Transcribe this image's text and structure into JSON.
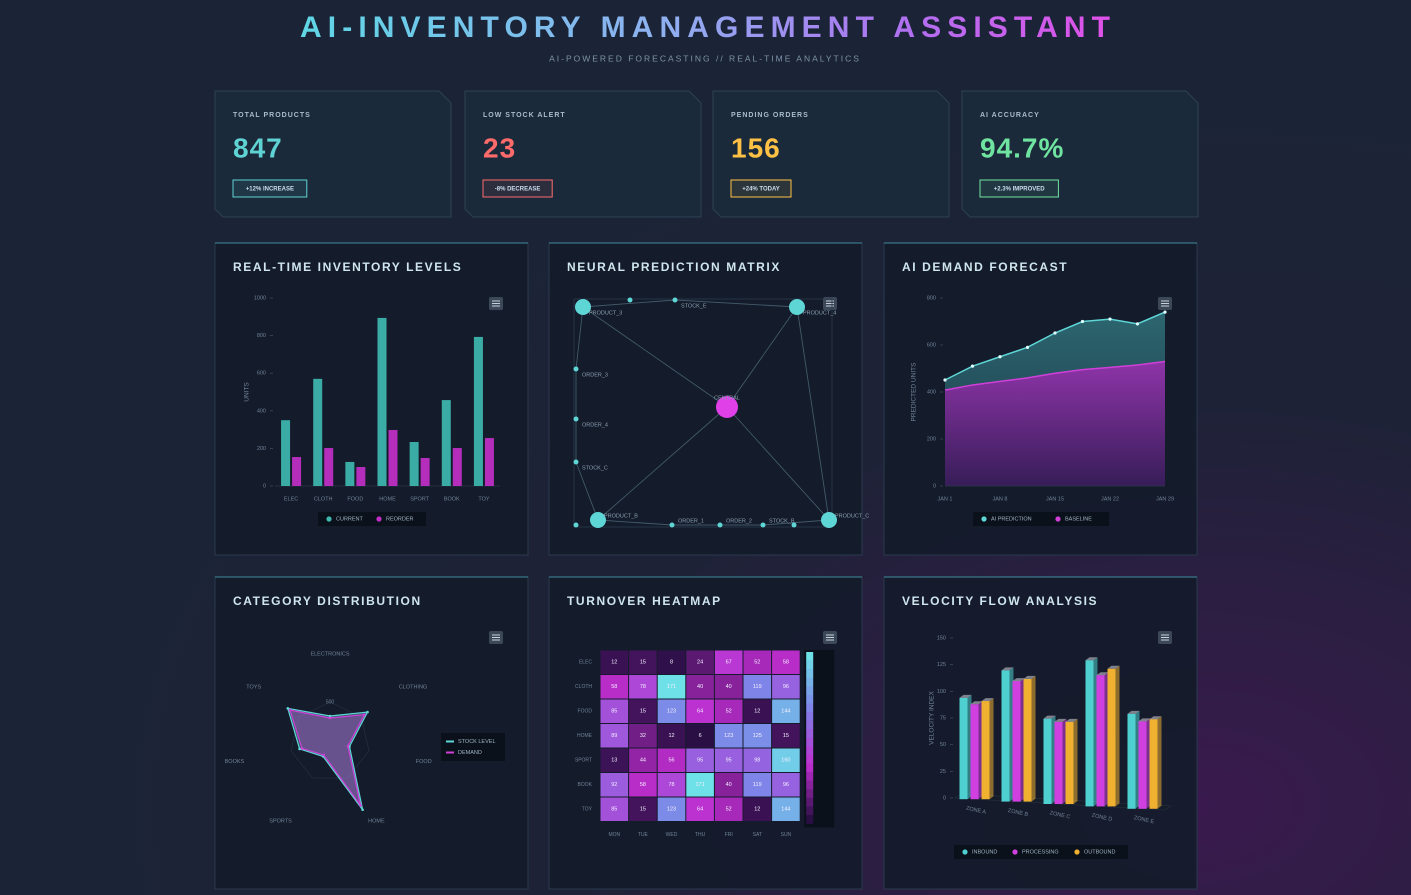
{
  "header": {
    "title": "AI-INVENTORY MANAGEMENT ASSISTANT",
    "subtitle": "AI-POWERED FORECASTING // REAL-TIME ANALYTICS"
  },
  "kpis": [
    {
      "label": "TOTAL PRODUCTS",
      "value": "847",
      "badge": "+12% INCREASE",
      "color": "#5fd3d3"
    },
    {
      "label": "LOW STOCK ALERT",
      "value": "23",
      "badge": "-8% DECREASE",
      "color": "#ff6b6b"
    },
    {
      "label": "PENDING ORDERS",
      "value": "156",
      "badge": "+24% TODAY",
      "color": "#ffc145"
    },
    {
      "label": "AI ACCURACY",
      "value": "94.7%",
      "badge": "+2.3% IMPROVED",
      "color": "#6fe3a0"
    }
  ],
  "chart_data": [
    {
      "type": "bar",
      "title": "REAL-TIME INVENTORY LEVELS",
      "y_label": "UNITS",
      "categories": [
        "ELEC",
        "CLOTH",
        "FOOD",
        "HOME",
        "SPORT",
        "BOOK",
        "TOY"
      ],
      "series": [
        {
          "name": "CURRENT",
          "color": "#3fb8b0",
          "values": [
            350,
            570,
            128,
            894,
            234,
            457,
            793
          ]
        },
        {
          "name": "REORDER",
          "color": "#c22fc8",
          "values": [
            154,
            202,
            101,
            298,
            149,
            202,
            255
          ]
        }
      ],
      "ylim": [
        0,
        1000
      ],
      "yticks": [
        0,
        200,
        400,
        600,
        800,
        1000
      ],
      "legend": "bottom"
    },
    {
      "type": "network",
      "title": "NEURAL PREDICTION MATRIX",
      "nodes": [
        "PRODUCT_3",
        "STOCK_E",
        "PRODUCT_4",
        "ORDER_3",
        "ORDER_4",
        "STOCK_C",
        "CENTRAL",
        "PRODUCT_B",
        "ORDER_1",
        "ORDER_2",
        "STOCK_B",
        "PRODUCT_C"
      ],
      "color": "#5fd6d6",
      "center_color": "#e040e8"
    },
    {
      "type": "area",
      "title": "AI DEMAND FORECAST",
      "y_label": "PREDICTED UNITS",
      "categories": [
        "JAN 1",
        null,
        "JAN 8",
        null,
        "JAN 15",
        null,
        "JAN 22",
        null,
        "JAN 29"
      ],
      "series": [
        {
          "name": "AI PREDICTION",
          "color": "#5fd6d6",
          "values": [
            451,
            510,
            550,
            590,
            651,
            700,
            710,
            690,
            740
          ]
        },
        {
          "name": "BASELINE",
          "color": "#d040d8",
          "values": [
            408,
            430,
            445,
            460,
            480,
            495,
            505,
            515,
            530
          ]
        }
      ],
      "ylim": [
        0,
        800
      ],
      "yticks": [
        0,
        200,
        400,
        600,
        800
      ],
      "legend": "bottom"
    },
    {
      "type": "radar",
      "title": "CATEGORY DISTRIBUTION",
      "categories": [
        "ELECTRONICS",
        "CLOTHING",
        "FOOD",
        "HOME",
        "SPORTS",
        "BOOKS",
        "TOYS"
      ],
      "series": [
        {
          "name": "STOCK LEVEL",
          "color": "#5fd6d6",
          "values": [
            325,
            600,
            250,
            940,
            200,
            390,
            675
          ]
        },
        {
          "name": "DEMAND",
          "color": "#d040d8",
          "values": [
            300,
            550,
            230,
            880,
            180,
            360,
            640
          ]
        }
      ],
      "rlim": [
        0,
        1000
      ],
      "rticks": [
        500
      ],
      "legend": "right"
    },
    {
      "type": "heatmap",
      "title": "TURNOVER HEATMAP",
      "rows": [
        "ELEC",
        "CLOTH",
        "FOOD",
        "HOME",
        "SPORT",
        "BOOK",
        "TOY"
      ],
      "columns": [
        "MON",
        "TUE",
        "WED",
        "THU",
        "FRI",
        "SAT",
        "SUN"
      ],
      "values": [
        [
          12,
          15,
          8,
          24,
          67,
          52,
          58
        ],
        [
          58,
          78,
          171,
          40,
          40,
          119,
          96
        ],
        [
          85,
          15,
          123,
          64,
          52,
          12,
          144
        ],
        [
          89,
          32,
          12,
          6,
          123,
          125,
          15
        ],
        [
          13,
          44,
          56,
          95,
          95,
          98,
          160
        ],
        [
          92,
          58,
          78,
          171,
          40,
          119,
          96
        ],
        [
          85,
          15,
          123,
          64,
          52,
          12,
          144
        ]
      ]
    },
    {
      "type": "bar3d",
      "title": "VELOCITY FLOW ANALYSIS",
      "y_label": "VELOCITY INDEX",
      "categories": [
        "ZONE A",
        "ZONE B",
        "ZONE C",
        "ZONE D",
        "ZONE E"
      ],
      "series": [
        {
          "name": "INBOUND",
          "color": "#4fd0d0",
          "values": [
            95,
            123,
            80,
            137,
            89
          ]
        },
        {
          "name": "PROCESSING",
          "color": "#d040e0",
          "values": [
            89,
            113,
            77,
            123,
            82
          ]
        },
        {
          "name": "OUTBOUND",
          "color": "#f0b030",
          "values": [
            92,
            115,
            77,
            129,
            84
          ]
        }
      ],
      "ylim": [
        0,
        150
      ],
      "yticks": [
        0,
        25,
        50,
        75,
        100,
        125,
        150
      ],
      "legend": "bottom"
    }
  ]
}
